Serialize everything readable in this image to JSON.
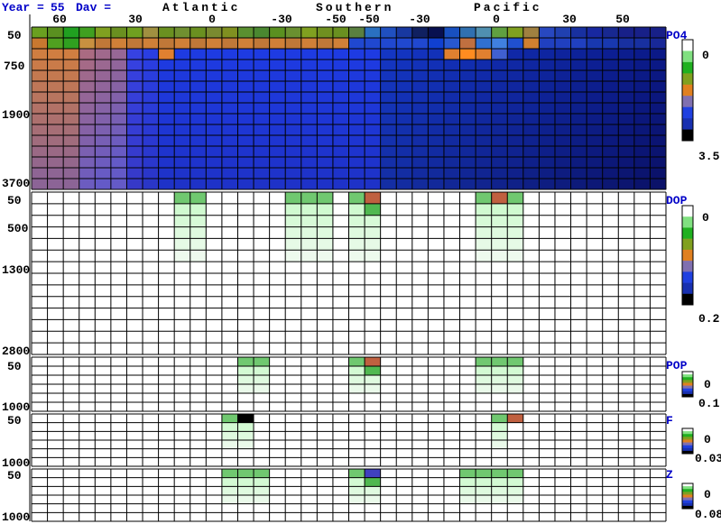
{
  "header": {
    "year_label": "Year =",
    "year_value": "55",
    "day_label": "Dav =",
    "basins": [
      "Atlantic",
      "Southern",
      "Pacific"
    ]
  },
  "lat_ticks": [
    "60",
    "30",
    "0",
    "-30",
    "-50",
    "-50",
    "-30",
    "0",
    "30",
    "50"
  ],
  "colors": {
    "grid": "#000000",
    "label": "#0000c8",
    "scale": [
      "#ffffff",
      "#80e080",
      "#20b020",
      "#80a020",
      "#e08020",
      "#8070b0",
      "#2040e0",
      "#1830b0",
      "#000000"
    ]
  },
  "chart_data": [
    {
      "type": "heatmap",
      "name": "PO4",
      "depth_ticks": [
        "50",
        "750",
        "1900",
        "3700"
      ],
      "scale_min": "0",
      "scale_max": "3.5",
      "columns": 40,
      "rows": 15,
      "notes": "surface nutrient-depleted green/orange; deep North Atlantic orange/violet; Pacific deep high (dark blue)"
    },
    {
      "type": "heatmap",
      "name": "DOP",
      "depth_ticks": [
        "50",
        "500",
        "1300",
        "2800"
      ],
      "scale_min": "0",
      "scale_max": "0.2",
      "columns": 40,
      "rows": 14
    },
    {
      "type": "heatmap",
      "name": "POP",
      "depth_ticks": [
        "50",
        "1000"
      ],
      "scale_min": "0",
      "scale_max": "0.1",
      "columns": 40,
      "rows": 6
    },
    {
      "type": "heatmap",
      "name": "F",
      "depth_ticks": [
        "50",
        "1000"
      ],
      "scale_min": "0",
      "scale_max": "0.03",
      "columns": 40,
      "rows": 6
    },
    {
      "type": "heatmap",
      "name": "Z",
      "depth_ticks": [
        "50",
        "1000"
      ],
      "scale_min": "0",
      "scale_max": "0.08",
      "columns": 40,
      "rows": 6
    }
  ]
}
